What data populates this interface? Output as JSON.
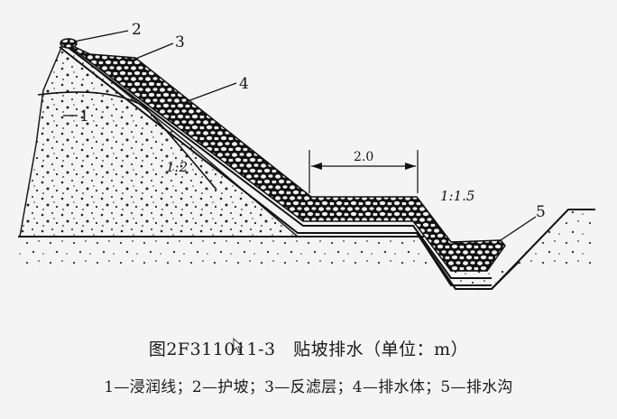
{
  "labels": {
    "n1": "1",
    "n2": "2",
    "n3": "3",
    "n4": "4",
    "n5": "5",
    "slope_left": "1:2",
    "slope_right": "1:1.5",
    "dimension": "2.0"
  },
  "caption": {
    "title": "图2F311011-3　贴坡排水（单位：m）",
    "legend": "1—浸润线；2—护坡；3—反滤层；4—排水体；5—排水沟"
  },
  "colors": {
    "ink": "#151515",
    "background": "#f4f4f4"
  },
  "icons": {
    "cursor": "mouse-pointer-icon"
  }
}
